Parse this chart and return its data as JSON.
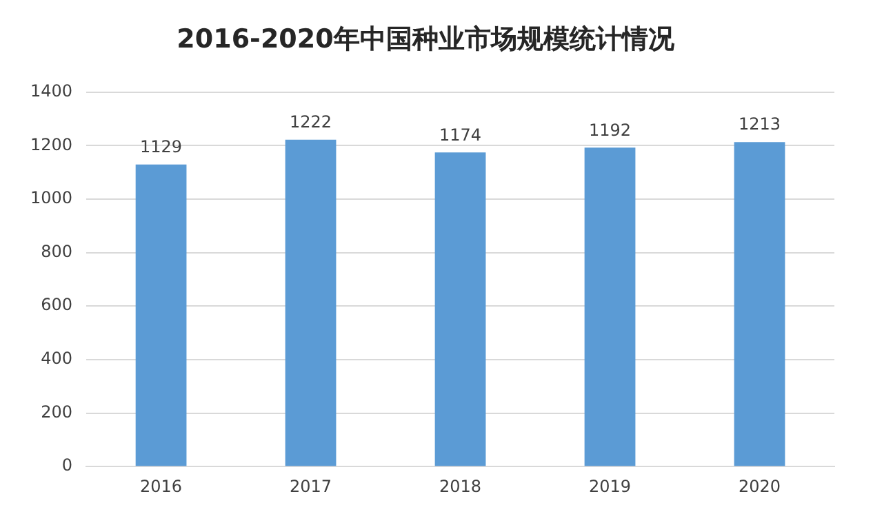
{
  "chart_data": {
    "type": "bar",
    "title": "2016-2020年中国种业市场规模统计情况",
    "categories": [
      "2016",
      "2017",
      "2018",
      "2019",
      "2020"
    ],
    "values": [
      1129,
      1222,
      1174,
      1192,
      1213
    ],
    "color": "#5b9bd5",
    "ylim": [
      0,
      1400
    ],
    "yticks": [
      0,
      200,
      400,
      600,
      800,
      1000,
      1200,
      1400
    ],
    "grid": "y",
    "data_labels": true
  }
}
